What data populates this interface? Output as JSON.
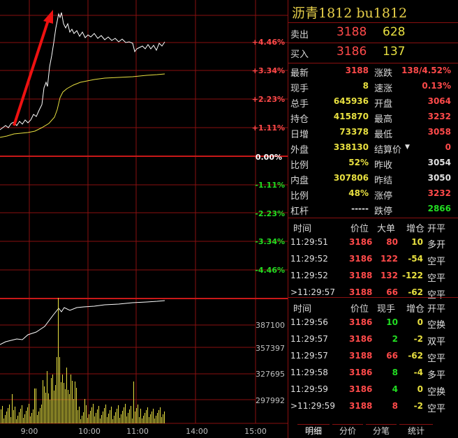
{
  "colors": {
    "up": "#ff4a4a",
    "down": "#22dd22",
    "grid": "#8a1010",
    "price_line": "#ffffff",
    "avg_line": "#e8e040",
    "volume": "#e8e040"
  },
  "chart": {
    "pct_labels": [
      "+4.46%",
      "+3.34%",
      "+2.23%",
      "+1.11%",
      "0.00%",
      "-1.11%",
      "-2.23%",
      "-3.34%",
      "-4.46%"
    ],
    "vol_labels": [
      "387100",
      "357397",
      "327695",
      "297992"
    ],
    "time_labels": [
      "9:00",
      "10:00",
      "11:00",
      "14:00",
      "15:00"
    ]
  },
  "quote": {
    "title": "沥青1812  bu1812",
    "sell": {
      "label": "卖出",
      "price": "3188",
      "qty": "628"
    },
    "buy": {
      "label": "买入",
      "price": "3186",
      "qty": "137"
    },
    "stats_left": [
      {
        "label": "最新",
        "value": "3188",
        "color": "red"
      },
      {
        "label": "现手",
        "value": "8",
        "color": "yel"
      },
      {
        "label": "总手",
        "value": "645936",
        "color": "yel"
      },
      {
        "label": "持仓",
        "value": "415870",
        "color": "yel"
      },
      {
        "label": "日增",
        "value": "73378",
        "color": "yel"
      },
      {
        "label": "外盘",
        "value": "338130",
        "color": "yel"
      },
      {
        "label": "比例",
        "value": "52%",
        "color": "yel"
      },
      {
        "label": "内盘",
        "value": "307806",
        "color": "yel"
      },
      {
        "label": "比例",
        "value": "48%",
        "color": "yel"
      },
      {
        "label": "杠杆",
        "value": "-----",
        "color": "wht"
      }
    ],
    "stats_right": [
      {
        "label": "涨跌",
        "value": "138/4.52%",
        "color": "red"
      },
      {
        "label": "速涨",
        "value": "0.13%",
        "color": "red"
      },
      {
        "label": "开盘",
        "value": "3064",
        "color": "red"
      },
      {
        "label": "最高",
        "value": "3232",
        "color": "red"
      },
      {
        "label": "最低",
        "value": "3058",
        "color": "red"
      },
      {
        "label": "结算价",
        "value": "0",
        "color": "red"
      },
      {
        "label": "昨收",
        "value": "3054",
        "color": "wht"
      },
      {
        "label": "昨结",
        "value": "3050",
        "color": "wht"
      },
      {
        "label": "涨停",
        "value": "3232",
        "color": "red"
      },
      {
        "label": "跌停",
        "value": "2866",
        "color": "green"
      }
    ]
  },
  "trades1": {
    "headers": [
      "时间",
      "价位",
      "大单",
      "增仓",
      "开平"
    ],
    "rows": [
      {
        "time": "11:29:51",
        "price": "3186",
        "qty": "80",
        "delta": "10",
        "type": "多开",
        "qcolor": "red",
        "dcolor": "yel"
      },
      {
        "time": "11:29:52",
        "price": "3186",
        "qty": "122",
        "delta": "-54",
        "type": "空平",
        "qcolor": "red",
        "dcolor": "yel"
      },
      {
        "time": "11:29:52",
        "price": "3188",
        "qty": "132",
        "delta": "-122",
        "type": "空平",
        "qcolor": "red",
        "dcolor": "yel"
      },
      {
        "time": ">11:29:57",
        "price": "3188",
        "qty": "66",
        "delta": "-62",
        "type": "空平",
        "qcolor": "red",
        "dcolor": "yel"
      }
    ]
  },
  "trades2": {
    "headers": [
      "时间",
      "价位",
      "现手",
      "增仓",
      "开平"
    ],
    "rows": [
      {
        "time": "11:29:56",
        "price": "3186",
        "qty": "10",
        "delta": "0",
        "type": "空换",
        "qcolor": "green",
        "dcolor": "yel"
      },
      {
        "time": "11:29:57",
        "price": "3186",
        "qty": "2",
        "delta": "-2",
        "type": "双平",
        "qcolor": "green",
        "dcolor": "yel"
      },
      {
        "time": "11:29:57",
        "price": "3188",
        "qty": "66",
        "delta": "-62",
        "type": "空平",
        "qcolor": "red",
        "dcolor": "yel"
      },
      {
        "time": "11:29:58",
        "price": "3186",
        "qty": "8",
        "delta": "-4",
        "type": "多平",
        "qcolor": "green",
        "dcolor": "yel"
      },
      {
        "time": "11:29:59",
        "price": "3186",
        "qty": "4",
        "delta": "0",
        "type": "空换",
        "qcolor": "green",
        "dcolor": "yel"
      },
      {
        "time": ">11:29:59",
        "price": "3188",
        "qty": "8",
        "delta": "-2",
        "type": "空平",
        "qcolor": "red",
        "dcolor": "yel"
      }
    ]
  },
  "tabs": [
    "明细",
    "分价",
    "分笔",
    "统计"
  ]
}
